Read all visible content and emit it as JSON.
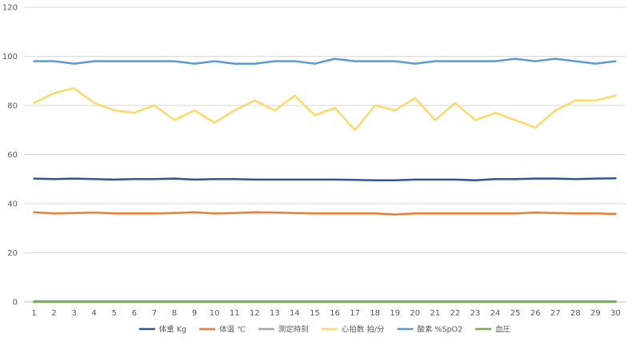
{
  "chart_data": {
    "type": "line",
    "x": [
      1,
      2,
      3,
      4,
      5,
      6,
      7,
      8,
      9,
      10,
      11,
      12,
      13,
      14,
      15,
      16,
      17,
      18,
      19,
      20,
      21,
      22,
      23,
      24,
      25,
      26,
      27,
      28,
      29,
      30
    ],
    "ylim": [
      0,
      120
    ],
    "yticks": [
      0,
      20,
      40,
      60,
      80,
      100,
      120
    ],
    "grid": true,
    "legend_position": "bottom",
    "series": [
      {
        "name": "体重 Kg",
        "color": "#2F5597",
        "values": [
          50.2,
          50.0,
          50.2,
          50.0,
          49.8,
          50.0,
          50.0,
          50.2,
          49.8,
          50.0,
          50.0,
          49.8,
          49.8,
          49.8,
          49.8,
          49.8,
          49.7,
          49.5,
          49.5,
          49.8,
          49.8,
          49.8,
          49.5,
          50.0,
          50.0,
          50.2,
          50.2,
          50.0,
          50.2,
          50.3
        ]
      },
      {
        "name": "体温 ℃",
        "color": "#ED7D31",
        "values": [
          36.5,
          36.0,
          36.2,
          36.4,
          36.0,
          36.0,
          36.0,
          36.2,
          36.5,
          36.0,
          36.2,
          36.5,
          36.4,
          36.2,
          36.0,
          36.0,
          36.0,
          36.0,
          35.6,
          36.0,
          36.0,
          36.0,
          36.0,
          36.0,
          36.0,
          36.4,
          36.2,
          36.0,
          36.0,
          35.8
        ]
      },
      {
        "name": "測定時刻",
        "color": "#A5A5A5",
        "values": [
          0.3,
          0.3,
          0.3,
          0.3,
          0.3,
          0.3,
          0.3,
          0.3,
          0.3,
          0.3,
          0.3,
          0.3,
          0.3,
          0.3,
          0.3,
          0.3,
          0.3,
          0.3,
          0.3,
          0.3,
          0.3,
          0.3,
          0.3,
          0.3,
          0.3,
          0.3,
          0.3,
          0.3,
          0.3,
          0.3
        ]
      },
      {
        "name": "心拍数 拍/分",
        "color": "#FFD966",
        "values": [
          81,
          85,
          87,
          81,
          78,
          77,
          80,
          74,
          78,
          73,
          78,
          82,
          78,
          84,
          76,
          79,
          70,
          80,
          78,
          83,
          74,
          81,
          74,
          77,
          74,
          71,
          78,
          82,
          82,
          84
        ]
      },
      {
        "name": "酸素 %SpO2",
        "color": "#5B9BD5",
        "values": [
          98,
          98,
          97,
          98,
          98,
          98,
          98,
          98,
          97,
          98,
          97,
          97,
          98,
          98,
          97,
          99,
          98,
          98,
          98,
          97,
          98,
          98,
          98,
          98,
          99,
          98,
          99,
          98,
          97,
          98
        ]
      },
      {
        "name": "血圧",
        "color": "#70AD47",
        "values": [
          0,
          0,
          0,
          0,
          0,
          0,
          0,
          0,
          0,
          0,
          0,
          0,
          0,
          0,
          0,
          0,
          0,
          0,
          0,
          0,
          0,
          0,
          0,
          0,
          0,
          0,
          0,
          0,
          0,
          0
        ]
      }
    ]
  }
}
